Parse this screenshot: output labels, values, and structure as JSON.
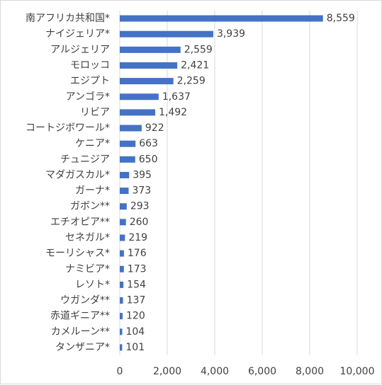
{
  "chart_data": {
    "type": "bar",
    "orientation": "horizontal",
    "categories": [
      "南アフリカ共和国*",
      "ナイジェリア*",
      "アルジェリア",
      "モロッコ",
      "エジプト",
      "アンゴラ*",
      "リビア",
      "コートジボワール*",
      "ケニア*",
      "チュニジア",
      "マダガスカル*",
      "ガーナ*",
      "ガボン**",
      "エチオピア**",
      "セネガル*",
      "モーリシャス*",
      "ナミビア*",
      "レソト*",
      "ウガンダ**",
      "赤道ギニア**",
      "カメルーン**",
      "タンザニア*"
    ],
    "values": [
      8559,
      3939,
      2559,
      2421,
      2259,
      1637,
      1492,
      922,
      663,
      650,
      395,
      373,
      293,
      260,
      219,
      176,
      173,
      154,
      137,
      120,
      104,
      101
    ],
    "data_labels": [
      "8,559",
      "3,939",
      "2,559",
      "2,421",
      "2,259",
      "1,637",
      "1,492",
      "922",
      "663",
      "650",
      "395",
      "373",
      "293",
      "260",
      "219",
      "176",
      "173",
      "154",
      "137",
      "120",
      "104",
      "101"
    ],
    "xlim": [
      0,
      10000
    ],
    "x_ticks": [
      0,
      2000,
      4000,
      6000,
      8000,
      10000
    ],
    "x_tick_labels": [
      "0",
      "2,000",
      "4,000",
      "6,000",
      "8,000",
      "10,000"
    ],
    "grid": true,
    "title": "",
    "xlabel": "",
    "ylabel": "",
    "bar_color": "#4472c4",
    "grid_color": "#d9d9d9",
    "text_color": "#404040"
  }
}
